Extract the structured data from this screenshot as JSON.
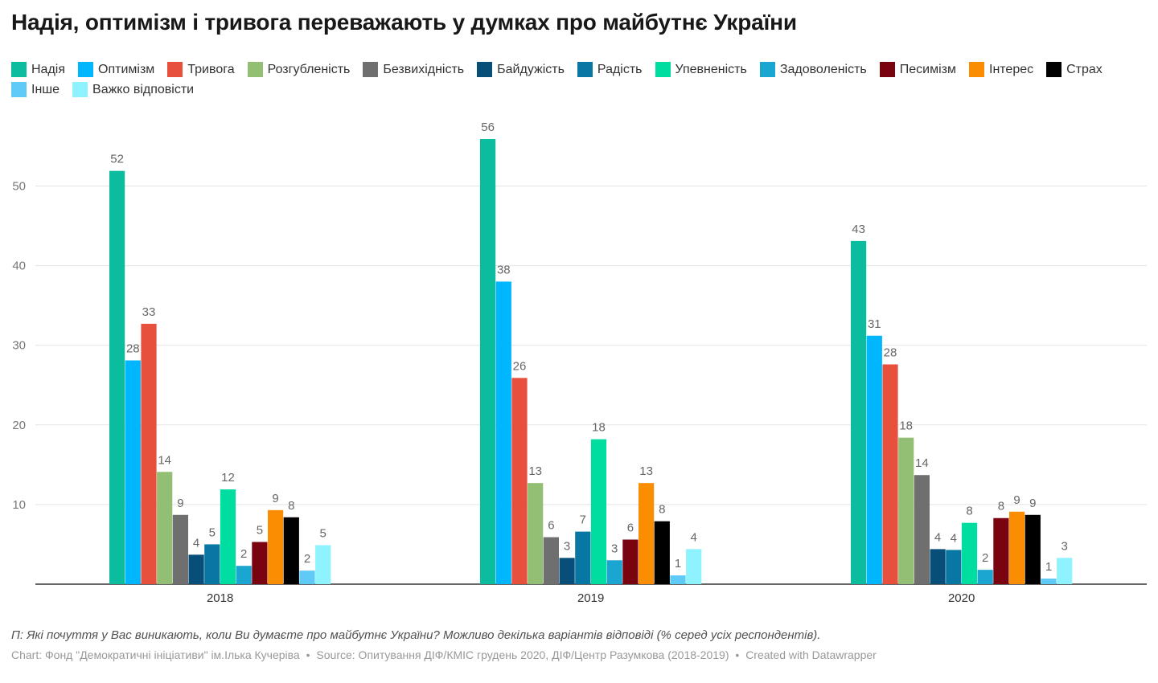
{
  "chart_data": {
    "type": "bar",
    "title": "Надія, оптимізм і тривога переважають у думках про майбутнє України",
    "xlabel": "",
    "ylabel": "",
    "ylim": [
      0,
      56
    ],
    "yticks": [
      10,
      20,
      30,
      40,
      50
    ],
    "grid": true,
    "legend_position": "top",
    "categories": [
      "2018",
      "2019",
      "2020"
    ],
    "series": [
      {
        "name": "Надія",
        "color": "#0bbc9f",
        "values": [
          51.9,
          55.9,
          43.1
        ],
        "labels": [
          "52",
          "56",
          "43"
        ]
      },
      {
        "name": "Оптимізм",
        "color": "#00b7ff",
        "values": [
          28.1,
          38.0,
          31.2
        ],
        "labels": [
          "28",
          "38",
          "31"
        ]
      },
      {
        "name": "Тривога",
        "color": "#e8503e",
        "values": [
          32.7,
          25.9,
          27.6
        ],
        "labels": [
          "33",
          "26",
          "28"
        ]
      },
      {
        "name": "Розгубленість",
        "color": "#93bf75",
        "values": [
          14.1,
          12.7,
          18.4
        ],
        "labels": [
          "14",
          "13",
          "18"
        ]
      },
      {
        "name": "Безвихідність",
        "color": "#6f6f6f",
        "values": [
          8.7,
          5.9,
          13.7
        ],
        "labels": [
          "9",
          "6",
          "14"
        ]
      },
      {
        "name": "Байдужість",
        "color": "#074f78",
        "values": [
          3.7,
          3.3,
          4.4
        ],
        "labels": [
          "4",
          "3",
          "4"
        ]
      },
      {
        "name": "Радість",
        "color": "#0877a3",
        "values": [
          5.0,
          6.6,
          4.3
        ],
        "labels": [
          "5",
          "7",
          "4"
        ]
      },
      {
        "name": "Упевненість",
        "color": "#00dda1",
        "values": [
          11.9,
          18.2,
          7.7
        ],
        "labels": [
          "12",
          "18",
          "8"
        ]
      },
      {
        "name": "Задоволеність",
        "color": "#1ba5d1",
        "values": [
          2.3,
          3.0,
          1.8
        ],
        "labels": [
          "2",
          "3",
          "2"
        ]
      },
      {
        "name": "Песимізм",
        "color": "#7a0310",
        "values": [
          5.3,
          5.6,
          8.3
        ],
        "labels": [
          "5",
          "6",
          "8"
        ]
      },
      {
        "name": "Інтерес",
        "color": "#fa8d02",
        "values": [
          9.3,
          12.7,
          9.1
        ],
        "labels": [
          "9",
          "13",
          "9"
        ]
      },
      {
        "name": "Страх",
        "color": "#000000",
        "values": [
          8.4,
          7.9,
          8.7
        ],
        "labels": [
          "8",
          "8",
          "9"
        ]
      },
      {
        "name": "Інше",
        "color": "#5fcaf5",
        "values": [
          1.7,
          1.1,
          0.7
        ],
        "labels": [
          "2",
          "1",
          "1"
        ]
      },
      {
        "name": "Важко відповісти",
        "color": "#8ef3ff",
        "values": [
          4.9,
          4.4,
          3.3
        ],
        "labels": [
          "5",
          "4",
          "3"
        ]
      }
    ]
  },
  "note": "П: Які почуття у Вас виникають, коли Ви думаєте про майбутнє України? Можливо декілька варіантів відповіді (% серед усіх респондентів).",
  "footer": {
    "chart_credit": "Chart: Фонд \"Демократичні ініціативи\" ім.Ілька Кучеріва",
    "separator": "•",
    "source": "Source: Опитування ДІФ/КМІС грудень 2020, ДІФ/Центр Разумкова (2018-2019)",
    "created": "Created with Datawrapper"
  }
}
